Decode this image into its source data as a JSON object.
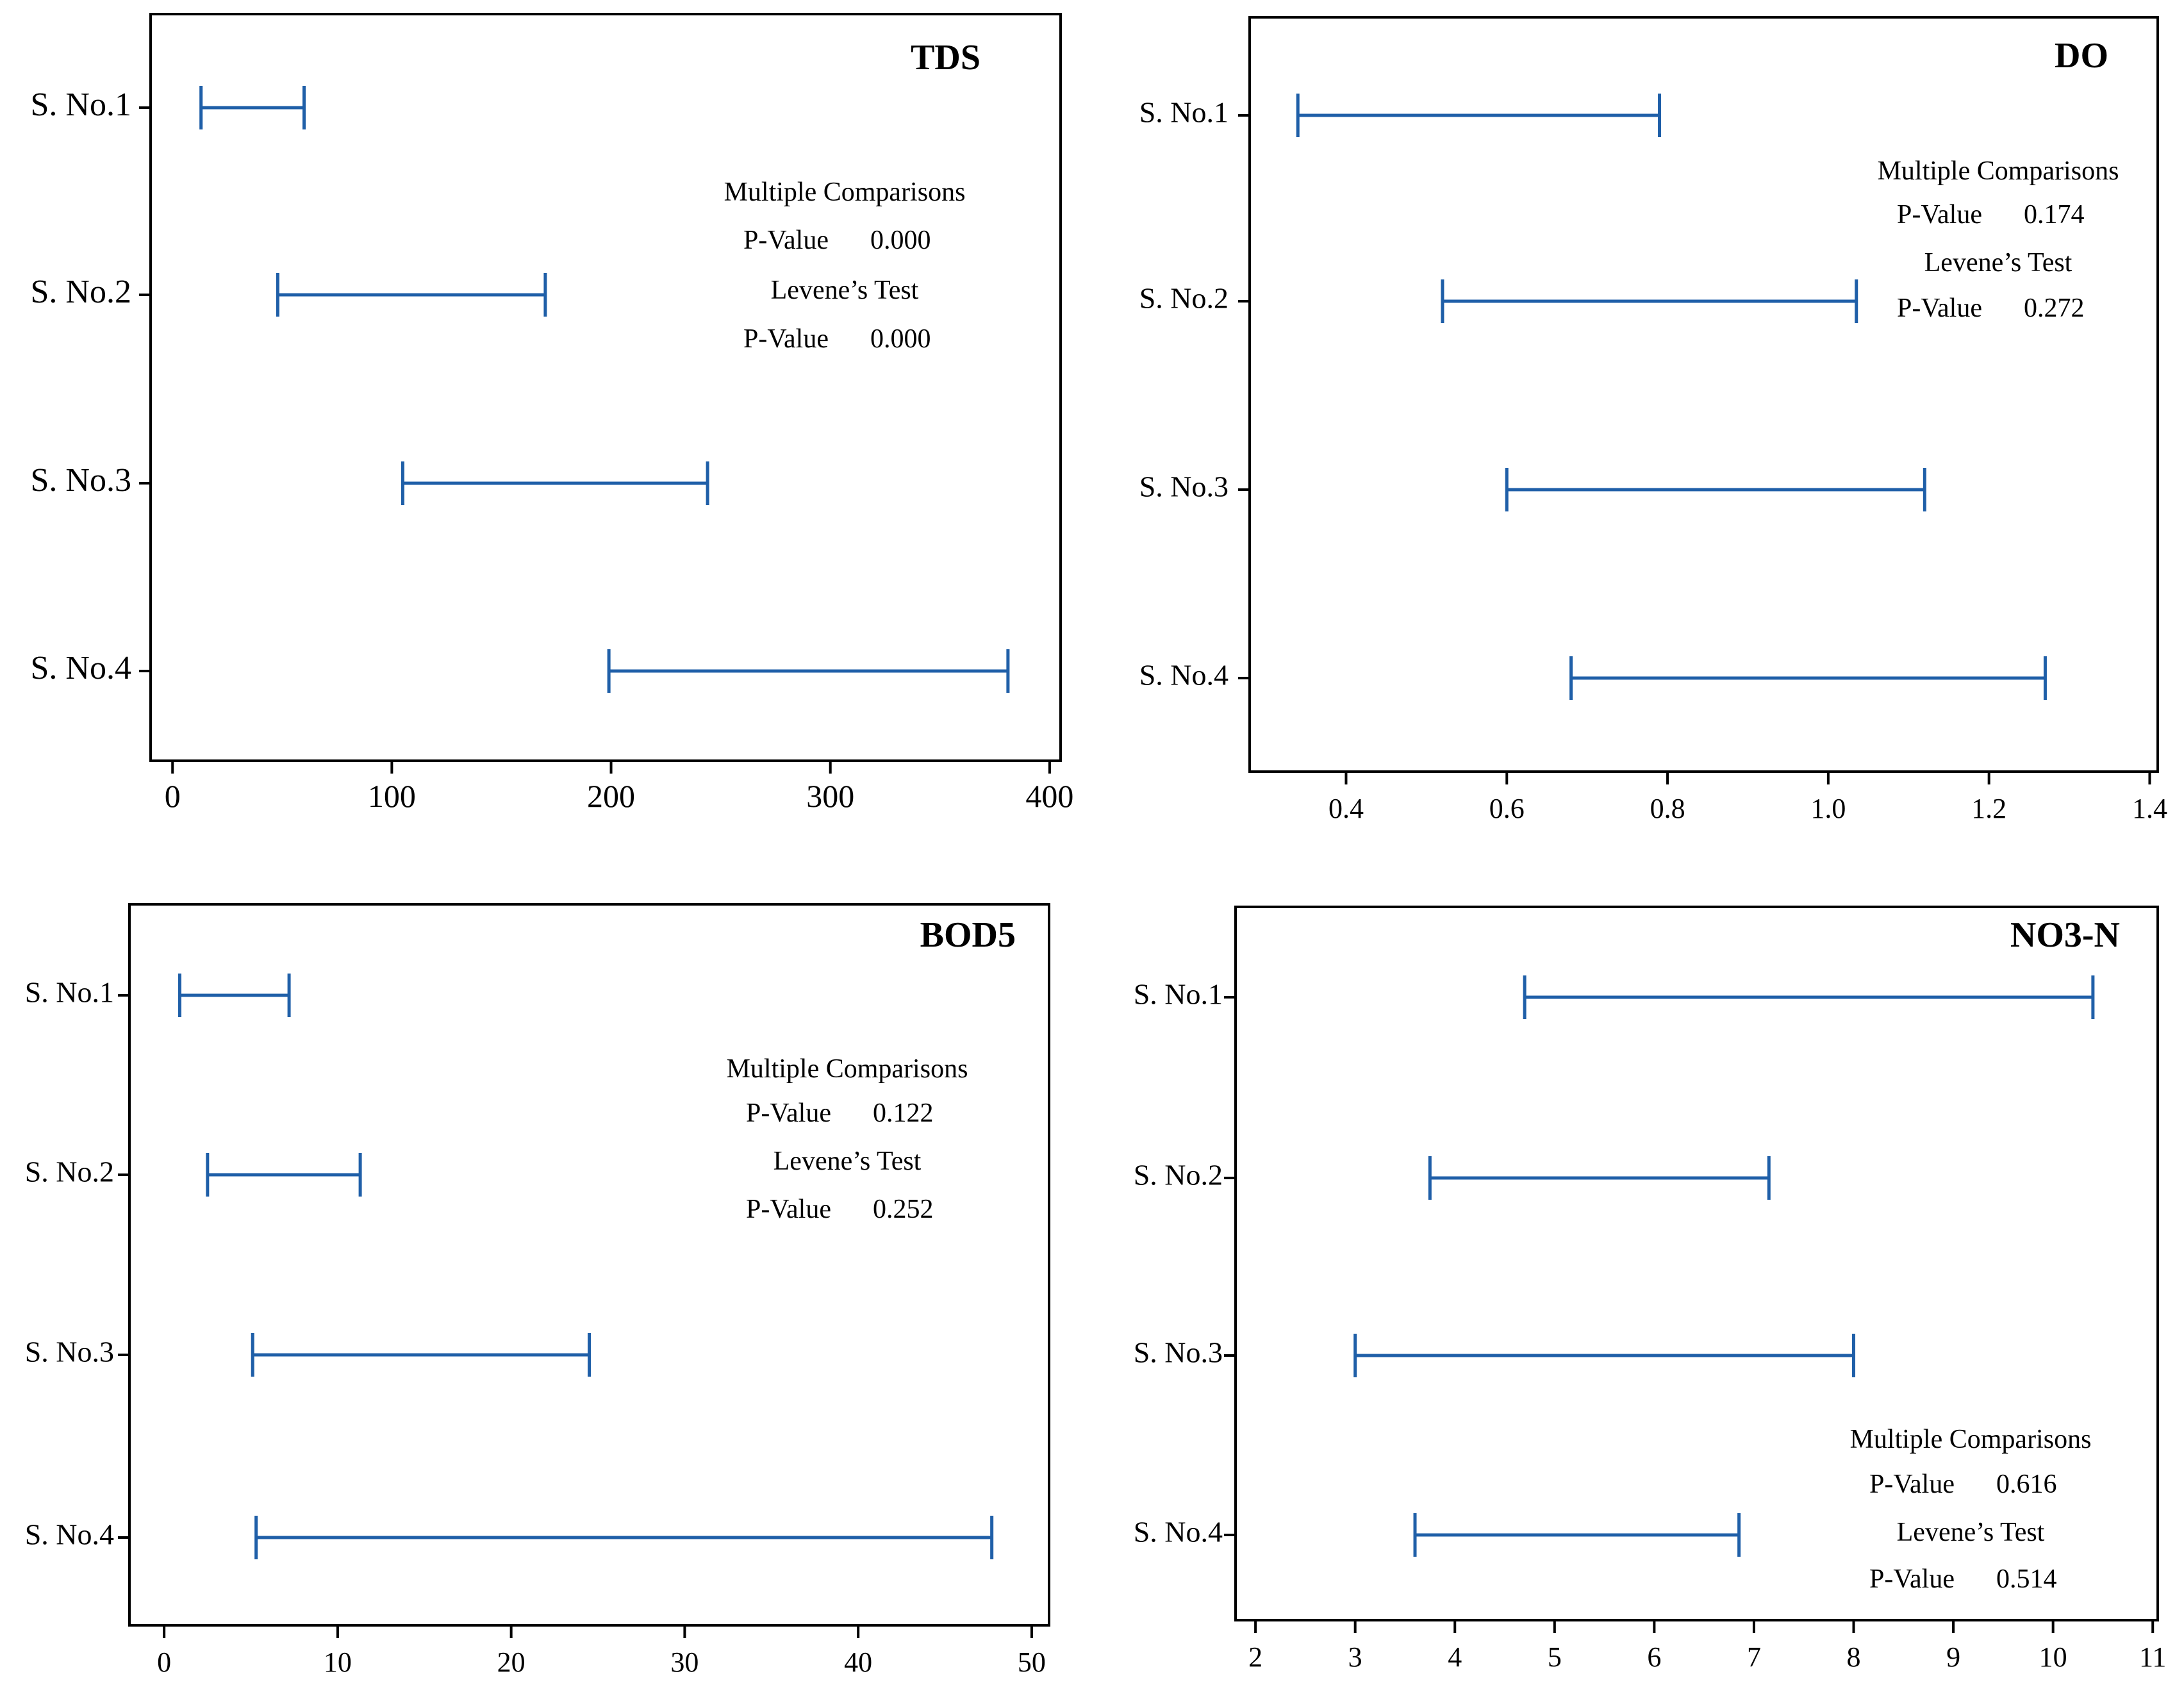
{
  "figure": {
    "line_color": "#1f5fa8"
  },
  "chart_data": [
    {
      "type": "interval",
      "title": "TDS",
      "categories": [
        "S. No.1",
        "S. No.2",
        "S. No.3",
        "S. No.4"
      ],
      "intervals": [
        [
          13,
          60
        ],
        [
          48,
          170
        ],
        [
          105,
          244
        ],
        [
          199,
          381
        ]
      ],
      "xlim": [
        -10,
        405
      ],
      "xticks": [
        0,
        100,
        200,
        300,
        400
      ],
      "xticks_labels": [
        "0",
        "100",
        "200",
        "300",
        "400"
      ],
      "stats": {
        "heading1": "Multiple Comparisons",
        "pvalue1_label": "P-Value",
        "pvalue1": "0.000",
        "heading2": "Levene’s Test",
        "pvalue2_label": "P-Value",
        "pvalue2": "0.000"
      }
    },
    {
      "type": "interval",
      "title": "DO",
      "categories": [
        "S. No.1",
        "S. No.2",
        "S. No.3",
        "S. No.4"
      ],
      "intervals": [
        [
          0.34,
          0.79
        ],
        [
          0.52,
          1.035
        ],
        [
          0.6,
          1.12
        ],
        [
          0.68,
          1.27
        ]
      ],
      "xlim": [
        0.28,
        1.41
      ],
      "xticks": [
        0.4,
        0.6,
        0.8,
        1.0,
        1.2,
        1.4
      ],
      "xticks_labels": [
        "0.4",
        "0.6",
        "0.8",
        "1.0",
        "1.2",
        "1.4"
      ],
      "stats": {
        "heading1": "Multiple Comparisons",
        "pvalue1_label": "P-Value",
        "pvalue1": "0.174",
        "heading2": "Levene’s Test",
        "pvalue2_label": "P-Value",
        "pvalue2": "0.272"
      }
    },
    {
      "type": "interval",
      "title": "BOD5",
      "categories": [
        "S. No.1",
        "S. No.2",
        "S. No.3",
        "S. No.4"
      ],
      "intervals": [
        [
          0.9,
          7.2
        ],
        [
          2.5,
          11.3
        ],
        [
          5.1,
          24.5
        ],
        [
          5.3,
          47.7
        ]
      ],
      "xlim": [
        -2,
        51
      ],
      "xticks": [
        0,
        10,
        20,
        30,
        40,
        50
      ],
      "xticks_labels": [
        "0",
        "10",
        "20",
        "30",
        "40",
        "50"
      ],
      "stats": {
        "heading1": "Multiple Comparisons",
        "pvalue1_label": "P-Value",
        "pvalue1": "0.122",
        "heading2": "Levene’s Test",
        "pvalue2_label": "P-Value",
        "pvalue2": "0.252"
      }
    },
    {
      "type": "interval",
      "title": "NO3-N",
      "categories": [
        "S. No.1",
        "S. No.2",
        "S. No.3",
        "S. No.4"
      ],
      "intervals": [
        [
          4.7,
          10.4
        ],
        [
          3.75,
          7.15
        ],
        [
          3.0,
          8.0
        ],
        [
          3.6,
          6.85
        ]
      ],
      "xlim": [
        1.8,
        11.05
      ],
      "xticks": [
        2,
        3,
        4,
        5,
        6,
        7,
        8,
        9,
        10,
        11
      ],
      "xticks_labels": [
        "2",
        "3",
        "4",
        "5",
        "6",
        "7",
        "8",
        "9",
        "10",
        "11"
      ],
      "stats": {
        "heading1": "Multiple Comparisons",
        "pvalue1_label": "P-Value",
        "pvalue1": "0.616",
        "heading2": "Levene’s Test",
        "pvalue2_label": "P-Value",
        "pvalue2": "0.514"
      }
    }
  ]
}
